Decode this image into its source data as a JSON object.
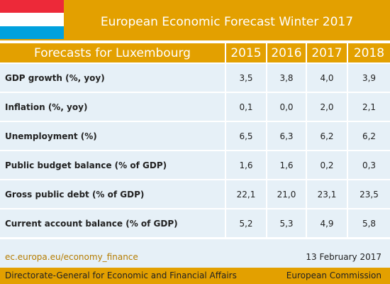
{
  "header": {
    "title": "European Economic Forecast Winter 2017"
  },
  "table": {
    "columns": [
      "Forecasts for Luxembourg",
      "2015",
      "2016",
      "2017",
      "2018"
    ],
    "rows": [
      [
        "GDP growth (%, yoy)",
        "3,5",
        "3,8",
        "4,0",
        "3,9"
      ],
      [
        "Inflation (%, yoy)",
        "0,1",
        "0,0",
        "2,0",
        "2,1"
      ],
      [
        "Unemployment (%)",
        "6,5",
        "6,3",
        "6,2",
        "6,2"
      ],
      [
        "Public budget balance (% of GDP)",
        "1,6",
        "1,6",
        "0,2",
        "0,3"
      ],
      [
        "Gross public debt (% of GDP)",
        "22,1",
        "21,0",
        "23,1",
        "23,5"
      ],
      [
        "Current account balance (% of GDP)",
        "5,2",
        "5,3",
        "4,9",
        "5,8"
      ]
    ]
  },
  "footer": {
    "link": "ec.europa.eu/economy_finance",
    "date": "13 February 2017",
    "department": "Directorate-General for Economic and Financial Affairs",
    "institution": "European Commission"
  }
}
